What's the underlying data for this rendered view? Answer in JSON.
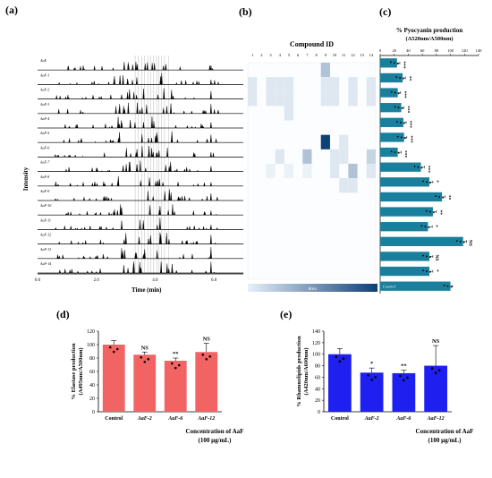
{
  "panel_letters": {
    "a": "(a)",
    "b": "(b)",
    "c": "(c)",
    "d": "(d)",
    "e": "(e)"
  },
  "colors": {
    "red": "#f26464",
    "blue": "#1f1ff0",
    "teal": "#1a7f9c",
    "heat_dark": "#0d3f78",
    "heat_light": "#e7f0fa"
  },
  "chart_data": [
    {
      "panel": "a",
      "type": "line",
      "ylabel": "Intensity",
      "xlabel": "Time (min)",
      "xticks": [
        "0.0",
        "2.0",
        "4.0",
        "6.0"
      ],
      "xlim": [
        0,
        7
      ],
      "traces": [
        "AaE",
        "AaF-1",
        "AaF-2",
        "AaF-3",
        "AaF-4",
        "AaF-5",
        "AaF-6",
        "AaF-7",
        "AaF-8",
        "AaF-9",
        "AaF-10",
        "AaF-11",
        "AaF-12",
        "AaF-13",
        "AaF-14"
      ]
    },
    {
      "panel": "b",
      "type": "heatmap",
      "title": "Compound ID",
      "columns": [
        "1",
        "2",
        "3",
        "4",
        "5",
        "6",
        "7",
        "8",
        "9",
        "10",
        "11",
        "12",
        "13",
        "14"
      ],
      "rows": [
        "AaE",
        "AaF-1",
        "AaF-2",
        "AaF-3",
        "AaF-4",
        "AaF-5",
        "AaF-6",
        "AaF-7",
        "AaF-8",
        "AaF-9",
        "AaF-10",
        "AaF-11",
        "AaF-12",
        "AaF-13",
        "AaF-14"
      ],
      "scale_left": "",
      "scale_label": "Area",
      "values": [
        [
          0,
          0,
          0,
          0,
          0,
          0,
          0,
          0,
          0.3,
          0,
          0,
          0,
          0,
          0
        ],
        [
          0.1,
          0,
          0.1,
          0.1,
          0.1,
          0,
          0,
          0,
          0.1,
          0.1,
          0,
          0.1,
          0,
          0.1
        ],
        [
          0.1,
          0,
          0.1,
          0.1,
          0.1,
          0,
          0,
          0,
          0.1,
          0.1,
          0,
          0.1,
          0,
          0.1
        ],
        [
          0,
          0,
          0,
          0,
          0.1,
          0,
          0,
          0,
          0,
          0,
          0,
          0,
          0,
          0
        ],
        [
          0,
          0,
          0,
          0,
          0,
          0,
          0,
          0,
          0,
          0,
          0,
          0,
          0,
          0
        ],
        [
          0,
          0,
          0,
          0,
          0,
          0,
          0,
          0,
          1.0,
          0,
          0.1,
          0,
          0,
          0
        ],
        [
          0,
          0,
          0,
          0.1,
          0,
          0,
          0.3,
          0,
          0,
          0.1,
          0.1,
          0,
          0,
          0.2
        ],
        [
          0,
          0,
          0.05,
          0,
          0.05,
          0,
          0.05,
          0,
          0,
          0.1,
          0,
          0.3,
          0,
          0.1
        ],
        [
          0,
          0,
          0,
          0,
          0,
          0,
          0,
          0,
          0,
          0,
          0.1,
          0.1,
          0,
          0
        ],
        [
          0,
          0,
          0,
          0,
          0,
          0,
          0,
          0,
          0,
          0,
          0,
          0,
          0,
          0
        ],
        [
          0,
          0,
          0,
          0,
          0,
          0,
          0,
          0,
          0,
          0,
          0,
          0,
          0,
          0
        ],
        [
          0,
          0,
          0,
          0,
          0,
          0,
          0,
          0,
          0,
          0,
          0,
          0,
          0,
          0
        ],
        [
          0,
          0,
          0,
          0,
          0,
          0,
          0,
          0,
          0,
          0,
          0,
          0,
          0,
          0
        ],
        [
          0,
          0,
          0,
          0,
          0,
          0,
          0,
          0,
          0,
          0,
          0,
          0,
          0,
          0
        ],
        [
          0,
          0,
          0,
          0,
          0,
          0,
          0,
          0,
          0,
          0,
          0,
          0,
          0,
          0
        ]
      ]
    },
    {
      "panel": "c",
      "type": "bar",
      "orientation": "horizontal",
      "title": "% Pyocyanin production",
      "subtitle": "(A520nm/A500nm)",
      "xlim": [
        0,
        140
      ],
      "xticks": [
        "0",
        "20",
        "40",
        "60",
        "80",
        "100",
        "120",
        "140"
      ],
      "categories": [
        "AaE",
        "AaF-1",
        "AaF-2",
        "AaF-3",
        "AaF-4",
        "AaF-5",
        "AaF-6",
        "AaF-7",
        "AaF-8",
        "AaF-9",
        "AaF-10",
        "AaF-11",
        "AaF-12",
        "AaF-13",
        "AaF-14",
        "Control"
      ],
      "values": [
        24,
        32,
        25,
        30,
        33,
        34,
        25,
        58,
        70,
        88,
        75,
        68,
        118,
        70,
        70,
        100
      ],
      "errors": [
        4,
        4,
        4,
        4,
        4,
        4,
        5,
        5,
        5,
        4,
        5,
        6,
        5,
        5,
        5,
        3
      ],
      "significance": [
        "***",
        "**",
        "***",
        "***",
        "***",
        "***",
        "***",
        "***",
        "*",
        "**",
        "**",
        "*",
        "NS",
        "NS",
        "*",
        ""
      ],
      "bar_label": "Control"
    },
    {
      "panel": "d",
      "type": "bar",
      "ylabel": "% Elastase production",
      "ylabel_sub": "(A495nm/A500nm)",
      "xlabel": "Concentration of AaF",
      "xlabel_sub": "(100 µg/mL)",
      "ylim": [
        0,
        120
      ],
      "yticks": [
        "0",
        "20",
        "40",
        "60",
        "80",
        "100",
        "120"
      ],
      "categories": [
        "Control",
        "AaF-2",
        "AaF-6",
        "AaF-12"
      ],
      "values": [
        100,
        85,
        76,
        89
      ],
      "errors": [
        6,
        4,
        4,
        13
      ],
      "significance": [
        "",
        "NS",
        "**",
        "NS"
      ]
    },
    {
      "panel": "e",
      "type": "bar",
      "ylabel": "% Rhamnolipids production",
      "ylabel_sub": "(A420nm/A600nm)",
      "xlabel": "Concentration of AaF",
      "xlabel_sub": "(100 µg/mL)",
      "ylim": [
        0,
        140
      ],
      "yticks": [
        "0",
        "20",
        "40",
        "60",
        "80",
        "100",
        "120",
        "140"
      ],
      "categories": [
        "Control",
        "AaF-2",
        "AaF-6",
        "AaF-12"
      ],
      "values": [
        100,
        68,
        67,
        80
      ],
      "errors": [
        10,
        8,
        5,
        35
      ],
      "significance": [
        "",
        "*",
        "**",
        "NS"
      ]
    }
  ]
}
